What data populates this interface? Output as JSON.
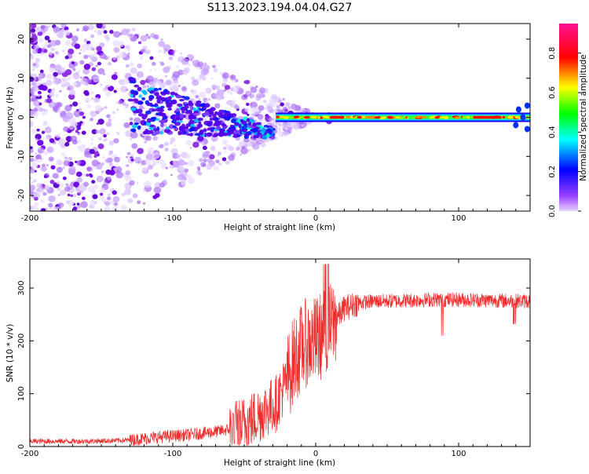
{
  "title": "S113.2023.194.04.04.G27",
  "colors": {
    "snr_line": "#ef2b2b",
    "spectrogram_noise": "#8a2be2",
    "colorbar_stops": [
      "#ff33ff",
      "#ff0000",
      "#ffff00",
      "#00ff00",
      "#00ffff",
      "#0000ff",
      "#cc99ff"
    ]
  },
  "chart_data": [
    {
      "type": "heatmap",
      "xlabel": "Height of straight line (km)",
      "ylabel": "Frequency (Hz)",
      "xlim": [
        -200,
        150
      ],
      "ylim": [
        -24,
        24
      ],
      "xticks": [
        {
          "v": -200,
          "label": "-200"
        },
        {
          "v": -100,
          "label": "-100"
        },
        {
          "v": 0,
          "label": "0"
        },
        {
          "v": 100,
          "label": "100"
        }
      ],
      "yticks": [
        {
          "v": -20,
          "label": "-20"
        },
        {
          "v": -10,
          "label": "-10"
        },
        {
          "v": 0,
          "label": "0"
        },
        {
          "v": 10,
          "label": "10"
        },
        {
          "v": 20,
          "label": "20"
        }
      ],
      "colorbar": {
        "label": "Normalized spectral amplitude",
        "range": [
          0,
          0.95
        ],
        "ticks": [
          {
            "v": 0.0,
            "label": "0.0"
          },
          {
            "v": 0.2,
            "label": "0.2"
          },
          {
            "v": 0.4,
            "label": "0.4"
          },
          {
            "v": 0.6,
            "label": "0.6"
          },
          {
            "v": 0.8,
            "label": "0.8"
          }
        ]
      },
      "signal_band": {
        "freq_hz": 0,
        "x_start_km": -28,
        "x_end_km": 150,
        "peak_amplitude": 0.9
      },
      "noise_region": {
        "x_start_km": -200,
        "x_end_km": -30
      }
    },
    {
      "type": "line",
      "xlabel": "Height of straight line (km)",
      "ylabel": "SNR (10 * v/v)",
      "xlim": [
        -200,
        150
      ],
      "ylim": [
        0,
        355
      ],
      "xticks": [
        {
          "v": -200,
          "label": "-200"
        },
        {
          "v": -100,
          "label": "-100"
        },
        {
          "v": 0,
          "label": "0"
        },
        {
          "v": 100,
          "label": "100"
        }
      ],
      "yticks": [
        {
          "v": 0,
          "label": "0"
        },
        {
          "v": 100,
          "label": "100"
        },
        {
          "v": 200,
          "label": "200"
        },
        {
          "v": 300,
          "label": "300"
        }
      ],
      "series": [
        {
          "trend_x": [
            -200,
            -160,
            -130,
            -110,
            -90,
            -70,
            -55,
            -45,
            -35,
            -28,
            -22,
            -15,
            -8,
            0,
            10,
            20,
            30,
            40,
            60,
            80,
            100,
            120,
            150
          ],
          "trend_y": [
            10,
            10,
            12,
            18,
            22,
            28,
            35,
            50,
            70,
            80,
            115,
            165,
            195,
            200,
            225,
            262,
            272,
            275,
            276,
            278,
            278,
            277,
            275
          ]
        }
      ]
    }
  ]
}
